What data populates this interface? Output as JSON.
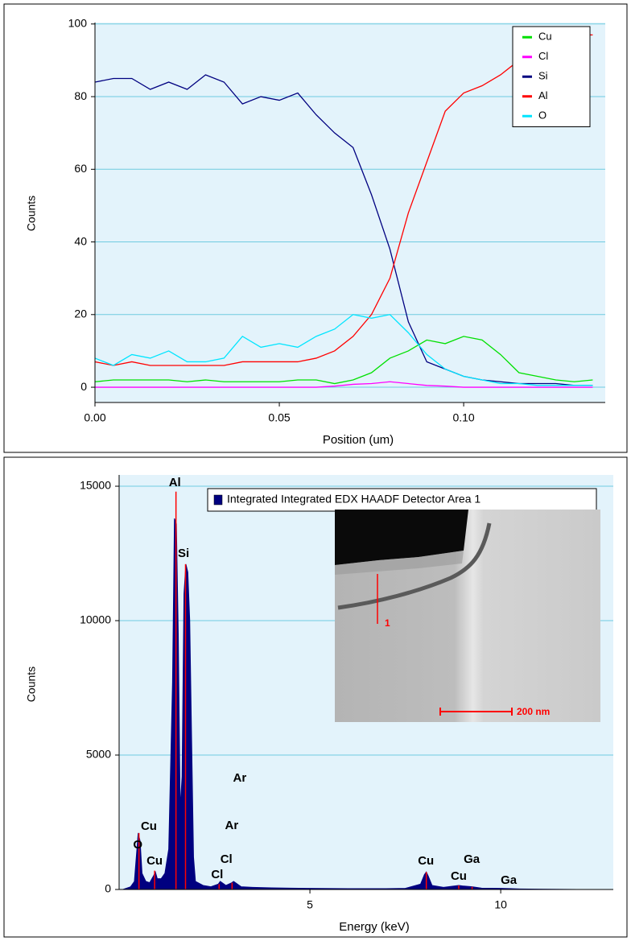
{
  "chart_data": [
    {
      "type": "line",
      "ylabel": "Counts",
      "xlabel": "Position (um)",
      "x": [
        0,
        0.005,
        0.01,
        0.015,
        0.02,
        0.025,
        0.03,
        0.035,
        0.04,
        0.045,
        0.05,
        0.055,
        0.06,
        0.065,
        0.07,
        0.075,
        0.08,
        0.085,
        0.09,
        0.095,
        0.1,
        0.105,
        0.11,
        0.115,
        0.12,
        0.125,
        0.13,
        0.135
      ],
      "series": [
        {
          "name": "Cu",
          "color": "#00e000",
          "values": [
            1.5,
            2,
            2,
            2,
            2,
            1.5,
            2,
            1.5,
            1.5,
            1.5,
            1.5,
            2,
            2,
            1,
            2,
            4,
            8,
            10,
            13,
            12,
            14,
            13,
            9,
            4,
            3,
            2,
            1.5,
            2
          ]
        },
        {
          "name": "Cl",
          "color": "#ff00ff",
          "values": [
            0,
            0,
            0,
            0,
            0,
            0,
            0,
            0,
            0,
            0,
            0,
            0,
            0,
            0.3,
            0.8,
            1,
            1.5,
            1,
            0.5,
            0.3,
            0,
            0,
            0,
            0,
            0,
            0,
            0,
            0
          ]
        },
        {
          "name": "Si",
          "color": "#000080",
          "values": [
            84,
            85,
            85,
            82,
            84,
            82,
            86,
            84,
            78,
            80,
            79,
            81,
            75,
            70,
            66,
            53,
            38,
            18,
            7,
            5,
            3,
            2,
            1.5,
            1,
            1,
            1,
            0.5,
            0.5
          ]
        },
        {
          "name": "Al",
          "color": "#ff0000",
          "values": [
            7,
            6,
            7,
            6,
            6,
            6,
            6,
            6,
            7,
            7,
            7,
            7,
            8,
            10,
            14,
            20,
            30,
            48,
            62,
            76,
            81,
            83,
            86,
            90,
            94,
            96,
            97,
            97
          ]
        },
        {
          "name": "O",
          "color": "#00e5ff",
          "values": [
            8,
            6,
            9,
            8,
            10,
            7,
            7,
            8,
            14,
            11,
            12,
            11,
            14,
            16,
            20,
            19,
            20,
            15,
            9,
            5,
            3,
            2,
            1,
            1,
            0.5,
            0.5,
            0.5,
            0.5
          ]
        }
      ],
      "xlim": [
        0,
        0.1384
      ],
      "ylim": [
        -4.2,
        100.4
      ],
      "xticks": [
        {
          "value": 0,
          "label": "0.00"
        },
        {
          "value": 0.05,
          "label": "0.05"
        },
        {
          "value": 0.1,
          "label": "0.10"
        }
      ],
      "yticks": [
        0,
        20,
        40,
        60,
        80,
        100
      ],
      "grid": true,
      "legend": "upper right"
    },
    {
      "type": "area",
      "ylabel": "Counts",
      "xlabel": "Energy (keV)",
      "x": [
        0.1,
        0.2,
        0.3,
        0.4,
        0.45,
        0.5,
        0.55,
        0.6,
        0.7,
        0.8,
        0.9,
        0.95,
        1.0,
        1.1,
        1.2,
        1.3,
        1.4,
        1.45,
        1.5,
        1.55,
        1.6,
        1.65,
        1.7,
        1.75,
        1.8,
        1.85,
        1.9,
        1.95,
        2.0,
        2.2,
        2.4,
        2.6,
        2.65,
        2.8,
        2.95,
        3.0,
        3.2,
        3.5,
        4,
        4.5,
        5,
        6,
        7,
        7.5,
        7.9,
        8.0,
        8.05,
        8.1,
        8.2,
        8.5,
        8.9,
        9.0,
        9.25,
        9.5,
        10,
        10.5,
        11,
        12
      ],
      "series": [
        {
          "name": "Integrated Integrated EDX HAADF Detector Area 1",
          "color": "#000080",
          "values": [
            0,
            50,
            100,
            300,
            1200,
            2100,
            1800,
            600,
            300,
            250,
            500,
            650,
            400,
            400,
            600,
            1500,
            7700,
            13800,
            13600,
            9500,
            3000,
            4200,
            11000,
            12100,
            11800,
            10000,
            5500,
            1200,
            300,
            150,
            100,
            200,
            300,
            150,
            250,
            300,
            100,
            80,
            60,
            50,
            40,
            30,
            30,
            40,
            200,
            550,
            650,
            500,
            150,
            80,
            150,
            130,
            100,
            50,
            40,
            20,
            10,
            0
          ]
        }
      ],
      "marker_lines": {
        "color": "#ff0000",
        "x": [
          0.52,
          0.93,
          1.49,
          1.74,
          2.62,
          2.96,
          8.05,
          8.9,
          9.25
        ],
        "values": [
          2100,
          700,
          14800,
          12100,
          200,
          250,
          650,
          150,
          100
        ]
      },
      "annotations": [
        {
          "text": "Al",
          "x": 1.46,
          "y": 15120
        },
        {
          "text": "Si",
          "x": 1.69,
          "y": 12485
        },
        {
          "text": "Cu",
          "x": 0.78,
          "y": 2335
        },
        {
          "text": "O",
          "x": 0.49,
          "y": 1650
        },
        {
          "text": "Cu",
          "x": 0.93,
          "y": 1050
        },
        {
          "text": "Ar",
          "x": 3.16,
          "y": 4130
        },
        {
          "text": "Ar",
          "x": 2.95,
          "y": 2365
        },
        {
          "text": "Cl",
          "x": 2.81,
          "y": 1110
        },
        {
          "text": "Cl",
          "x": 2.57,
          "y": 540
        },
        {
          "text": "Cu",
          "x": 8.04,
          "y": 1050
        },
        {
          "text": "Cu",
          "x": 8.9,
          "y": 480
        },
        {
          "text": "Ga",
          "x": 9.24,
          "y": 1110
        },
        {
          "text": "Ga",
          "x": 10.21,
          "y": 330
        }
      ],
      "inset": {
        "scale_label": "200 nm",
        "marker_label": "1"
      },
      "xlim": [
        0,
        12.95
      ],
      "ylim": [
        0,
        15420
      ],
      "xticks": [
        5,
        10
      ],
      "yticks": [
        0,
        5000,
        10000,
        15000
      ],
      "grid": true,
      "legend": "upper right"
    }
  ]
}
